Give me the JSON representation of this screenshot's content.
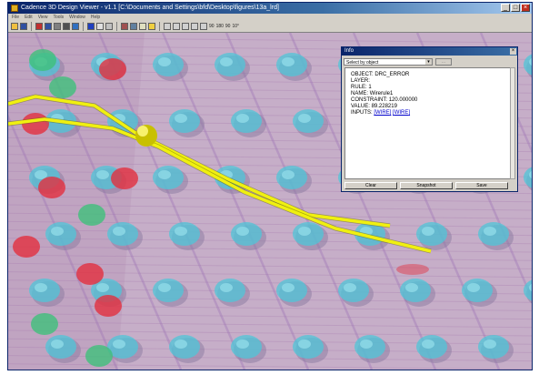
{
  "window": {
    "title": "Cadence 3D Design Viewer - v1.1 [C:\\Documents and Settings\\bfd\\Desktop\\figures\\13a_lrd]",
    "minimize": "_",
    "maximize": "□",
    "close": "×"
  },
  "menu": [
    "File",
    "Edit",
    "View",
    "Tools",
    "Window",
    "Help"
  ],
  "toolbar_text": [
    "90",
    "180",
    "90",
    "10°"
  ],
  "colors": {
    "board": "#c6aec8",
    "pad": "#4fc6d8",
    "via_green": "#3ec07a",
    "via_red": "#e2303f",
    "trace": "#f0f010",
    "accent": "#0a246a"
  },
  "info": {
    "title": "Info",
    "close": "×",
    "select_value": "Select by object",
    "select_button": "...",
    "lines": [
      {
        "key": "OBJECT:",
        "value": "DRC_ERROR"
      },
      {
        "key": "LAYER:",
        "value": ""
      },
      {
        "key": "RULE:",
        "value": "1"
      },
      {
        "key": "NAME:",
        "value": "Wirerule1"
      },
      {
        "key": "CONSTRAINT:",
        "value": "120.000000"
      },
      {
        "key": "VALUE:",
        "value": "89.228219"
      }
    ],
    "inputs_label": "INPUTS:",
    "inputs": [
      "WIRE",
      "WIRE"
    ],
    "buttons": {
      "clear": "Clear",
      "snapshot": "Snapshot",
      "save": "Save"
    }
  }
}
